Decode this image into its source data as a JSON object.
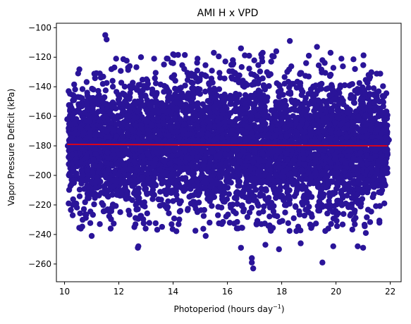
{
  "chart_data": {
    "type": "scatter",
    "title": "AMI H x VPD",
    "xlabel": "Photoperiod (hours day",
    "xlabel_sup": "−1",
    "xlabel_close": ")",
    "ylabel": "Vapor Pressure Deficit (kPa)",
    "xlim": [
      9.7,
      22.4
    ],
    "ylim": [
      -272,
      -97
    ],
    "xticks": [
      10,
      12,
      14,
      16,
      18,
      20,
      22
    ],
    "yticks": [
      -100,
      -120,
      -140,
      -160,
      -180,
      -200,
      -220,
      -240,
      -260
    ],
    "xtick_labels": [
      "10",
      "12",
      "14",
      "16",
      "18",
      "20",
      "22"
    ],
    "ytick_labels": [
      "−100",
      "−120",
      "−140",
      "−160",
      "−180",
      "−200",
      "−220",
      "−240",
      "−260"
    ],
    "grid": false,
    "legend": "none",
    "colors": {
      "points": "#2a1499",
      "fit_line": "#ff0000"
    },
    "series": [
      {
        "points": [
          [
            11.5,
            -105
          ],
          [
            11.55,
            -108
          ],
          [
            18.3,
            -109
          ],
          [
            16.5,
            -114
          ],
          [
            19.3,
            -113
          ],
          [
            17.8,
            -116
          ],
          [
            11.9,
            -121
          ],
          [
            16.2,
            -122
          ],
          [
            11.3,
            -131
          ],
          [
            10.5,
            -131
          ],
          [
            10.15,
            -143
          ],
          [
            10.1,
            -162
          ],
          [
            10.12,
            -180
          ],
          [
            10.2,
            -200
          ],
          [
            10.15,
            -219
          ],
          [
            10.3,
            -227
          ],
          [
            10.6,
            -236
          ],
          [
            11.0,
            -241
          ],
          [
            11.3,
            -233
          ],
          [
            11.7,
            -236
          ],
          [
            12.7,
            -249
          ],
          [
            12.72,
            -248
          ],
          [
            15.2,
            -241
          ],
          [
            16.5,
            -249
          ],
          [
            16.9,
            -259
          ],
          [
            16.95,
            -263
          ],
          [
            16.9,
            -256
          ],
          [
            17.4,
            -247
          ],
          [
            17.9,
            -250
          ],
          [
            18.7,
            -246
          ],
          [
            19.5,
            -259
          ],
          [
            19.9,
            -248
          ],
          [
            20.8,
            -248
          ],
          [
            21.0,
            -249
          ],
          [
            21.1,
            -239
          ],
          [
            21.6,
            -232
          ],
          [
            21.7,
            -210
          ],
          [
            21.8,
            -196
          ],
          [
            21.9,
            -186
          ],
          [
            21.95,
            -176
          ],
          [
            21.8,
            -165
          ],
          [
            21.6,
            -150
          ],
          [
            21.5,
            -144
          ],
          [
            21.2,
            -132
          ],
          [
            20.7,
            -128
          ],
          [
            20.2,
            -121
          ],
          [
            19.8,
            -117
          ],
          [
            19.5,
            -122
          ],
          [
            19.0,
            -119
          ],
          [
            14.0,
            -118
          ],
          [
            13.3,
            -121
          ],
          [
            12.4,
            -126
          ],
          [
            14.9,
            -121
          ],
          [
            15.5,
            -117
          ],
          [
            16.8,
            -119
          ],
          [
            17.3,
            -117
          ],
          [
            18.9,
            -124
          ],
          [
            13.8,
            -121
          ]
        ]
      }
    ],
    "fit_line": {
      "x": [
        10.1,
        21.9
      ],
      "y": [
        -179,
        -180
      ]
    }
  }
}
